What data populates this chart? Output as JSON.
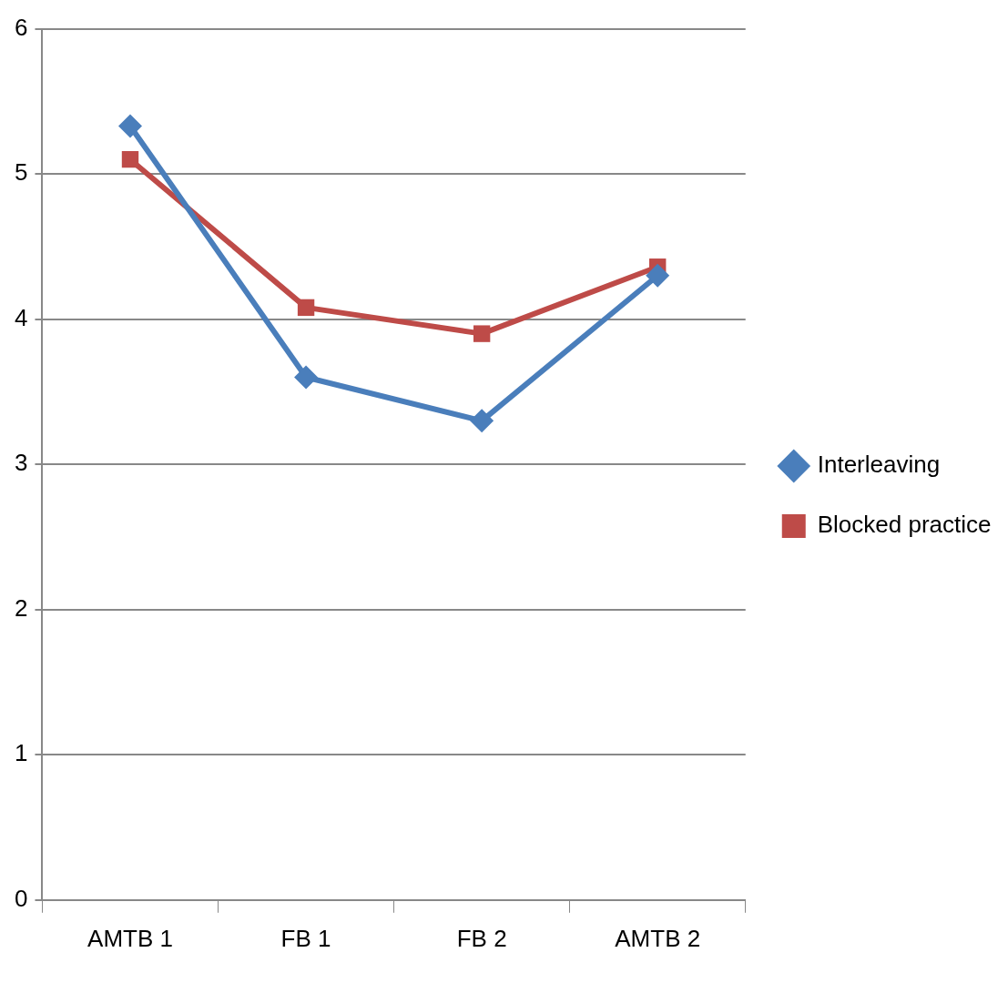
{
  "chart_data": {
    "type": "line",
    "categories": [
      "AMTB 1",
      "FB 1",
      "FB 2",
      "AMTB 2"
    ],
    "series": [
      {
        "name": "Interleaving",
        "color": "#4a7ebb",
        "marker": "diamond",
        "values": [
          5.33,
          3.6,
          3.3,
          4.3
        ]
      },
      {
        "name": "Blocked practice",
        "color": "#be4b48",
        "marker": "square",
        "values": [
          5.1,
          4.08,
          3.9,
          4.36
        ]
      }
    ],
    "ylim": [
      0,
      6
    ],
    "yticks": [
      0,
      1,
      2,
      3,
      4,
      5,
      6
    ],
    "grid": "y",
    "legend": "right",
    "line_style": "solid"
  }
}
